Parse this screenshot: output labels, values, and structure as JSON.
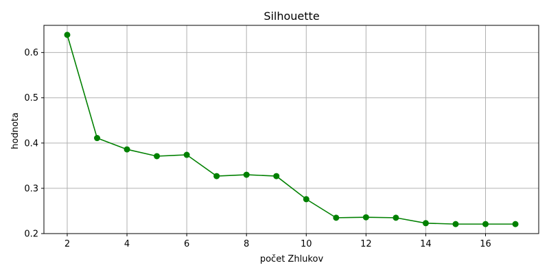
{
  "chart_data": {
    "type": "line",
    "title": "Silhouette",
    "xlabel": "počet Zhlukov",
    "ylabel": "hodnota",
    "x": [
      2,
      3,
      4,
      5,
      6,
      7,
      8,
      9,
      10,
      11,
      12,
      13,
      14,
      15,
      16,
      17
    ],
    "series": [
      {
        "color": "#008000",
        "marker": "circle",
        "values": [
          0.639,
          0.411,
          0.386,
          0.371,
          0.374,
          0.327,
          0.33,
          0.327,
          0.276,
          0.235,
          0.236,
          0.235,
          0.223,
          0.221,
          0.221,
          0.221
        ]
      }
    ],
    "xlim": [
      1.22,
      17.78
    ],
    "ylim": [
      0.2,
      0.66
    ],
    "xticks": [
      "2",
      "4",
      "6",
      "8",
      "10",
      "12",
      "14",
      "16"
    ],
    "yticks": [
      "0.2",
      "0.3",
      "0.4",
      "0.5",
      "0.6"
    ],
    "grid": true
  }
}
